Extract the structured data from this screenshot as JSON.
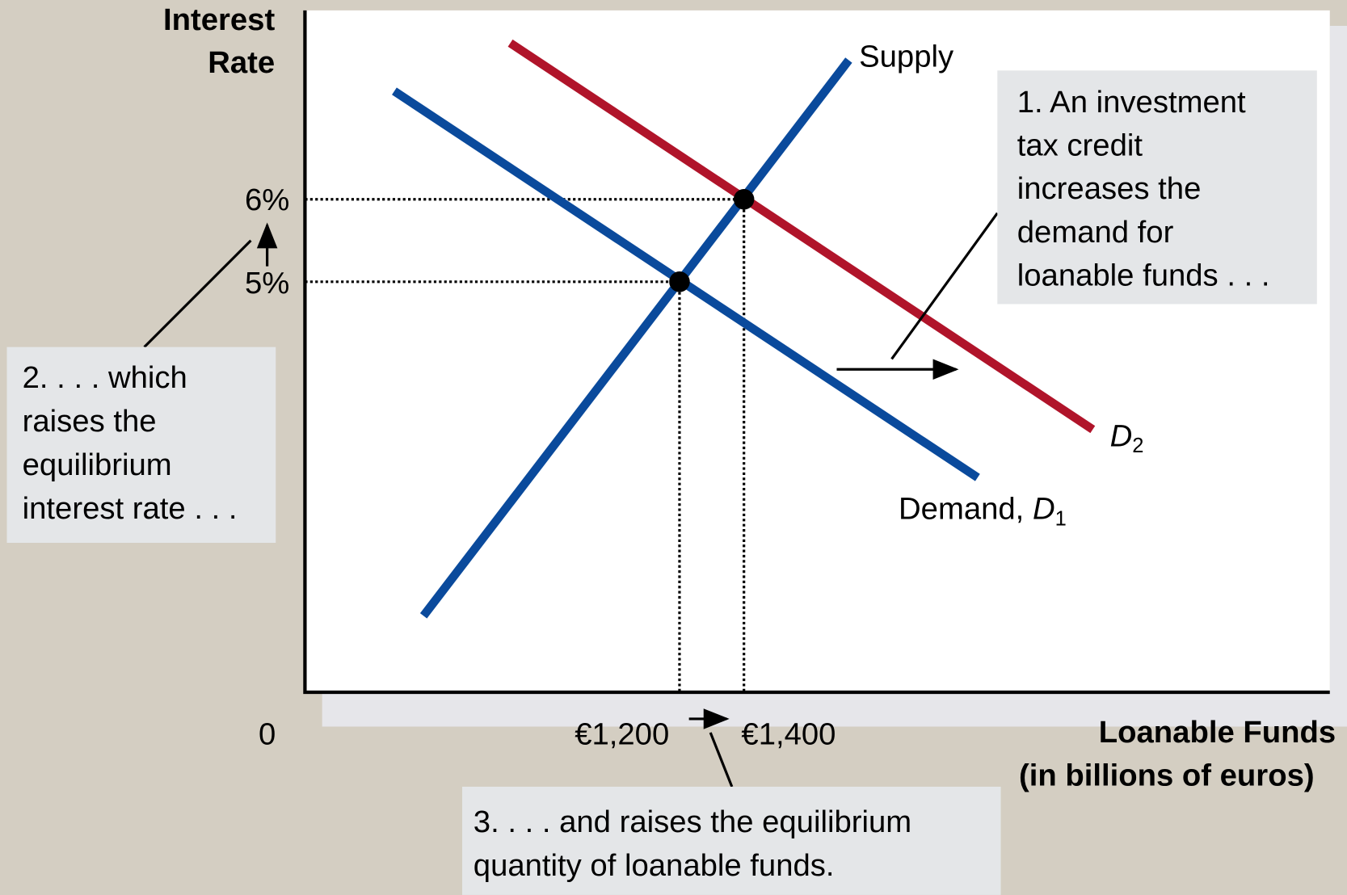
{
  "axes": {
    "y_title": [
      "Interest",
      "Rate"
    ],
    "x_title": [
      "Loanable Funds",
      "(in billions of euros)"
    ],
    "origin": "0",
    "y_labels": [
      "6%",
      "5%"
    ],
    "x_labels": [
      "€1,200",
      "€1,400"
    ]
  },
  "curves": {
    "supply": "Supply",
    "demand1": {
      "text": "Demand, ",
      "symbol": "D",
      "subscript": "1"
    },
    "demand2": {
      "symbol": "D",
      "subscript": "2"
    }
  },
  "notes": [
    [
      "1. An investment",
      "tax credit",
      "increases the",
      "demand for",
      "loanable funds . . ."
    ],
    [
      "2. . . . which",
      "raises the",
      "equilibrium",
      "interest rate . . ."
    ],
    [
      "3. . . . and raises the equilibrium",
      "quantity of loanable funds."
    ]
  ]
}
